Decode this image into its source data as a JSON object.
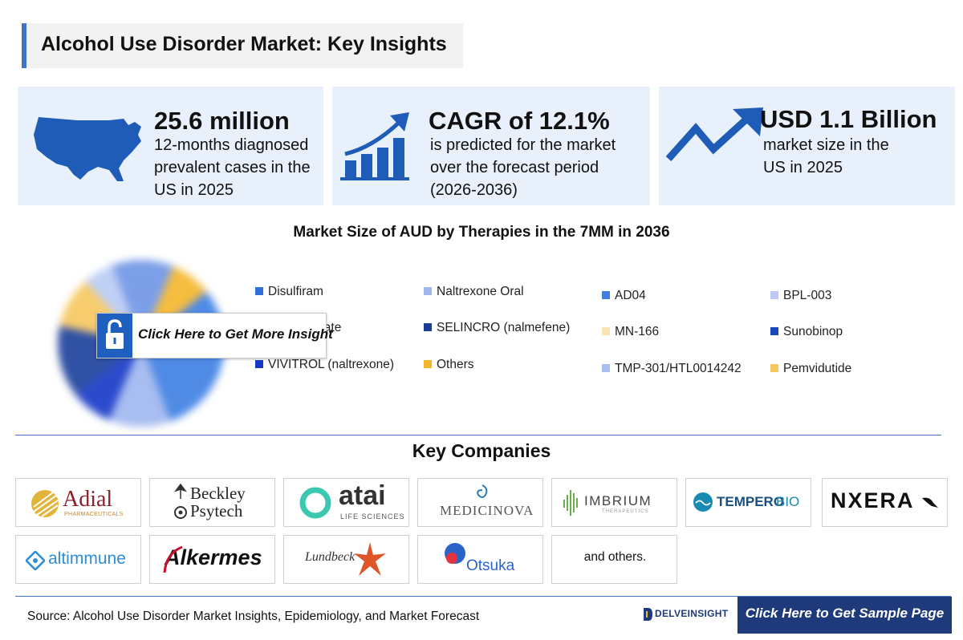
{
  "header": {
    "title": "Alcohol Use Disorder Market: Key Insights"
  },
  "kpis": [
    {
      "value": "25.6 million",
      "lines": [
        "12-months diagnosed",
        "prevalent cases in the",
        "US in 2025"
      ],
      "icon": "us-map-icon"
    },
    {
      "value": "CAGR of 12.1%",
      "lines": [
        "is predicted for the market",
        "over the forecast period",
        "(2026-2036)"
      ],
      "icon": "growth-bar-chart-icon"
    },
    {
      "value": "USD 1.1 Billion",
      "lines": [
        "market size in the",
        "US in 2025"
      ],
      "icon": "trend-arrow-icon"
    }
  ],
  "chart_data": {
    "type": "pie",
    "title": "Market Size of AUD by Therapies in the 7MM in 2036",
    "legend": [
      {
        "label": "Disulfiram",
        "color": "#2e6fd8"
      },
      {
        "label": "Naltrexone Oral",
        "color": "#9fb6ef"
      },
      {
        "label": "AD04",
        "color": "#3d7fe3"
      },
      {
        "label": "BPL-003",
        "color": "#b9cbf5"
      },
      {
        "label": "Acamprosate",
        "color": "#6f95e6"
      },
      {
        "label": "SELINCRO (nalmefene)",
        "color": "#1a3f9b"
      },
      {
        "label": "MN-166",
        "color": "#fbe6b3"
      },
      {
        "label": "Sunobinop",
        "color": "#1848b8"
      },
      {
        "label": "VIVITROL (naltrexone)",
        "color": "#1538c8"
      },
      {
        "label": "Others",
        "color": "#f4b52b"
      },
      {
        "label": "TMP-301/HTL0014242",
        "color": "#a9bdf0"
      },
      {
        "label": "Pemvidutide",
        "color": "#f6c75e"
      }
    ]
  },
  "cta": {
    "insight": "Click Here to Get More Insight",
    "sample": "Click Here to Get Sample Page"
  },
  "companies": {
    "title": "Key Companies",
    "logos": [
      {
        "name": "Adial",
        "sub": "PHARMACEUTICALS"
      },
      {
        "name": "Beckley",
        "name2": "Psytech"
      },
      {
        "name": "atai",
        "sub": "LIFE SCIENCES"
      },
      {
        "name": "MEDICINOVA"
      },
      {
        "name": "IMBRIUM",
        "sub": "THERAPEUTICS"
      },
      {
        "name": "TEMPERO",
        "name2": "BIO"
      },
      {
        "name": "NXERA"
      },
      {
        "name": "altimmune"
      },
      {
        "name": "Alkermes"
      },
      {
        "name": "Lundbeck"
      },
      {
        "name": "Otsuka"
      },
      {
        "name": "and others."
      }
    ]
  },
  "footer": {
    "source": "Source: Alcohol Use Disorder Market Insights, Epidemiology, and Market Forecast",
    "brand": "DELVEINSIGHT"
  }
}
